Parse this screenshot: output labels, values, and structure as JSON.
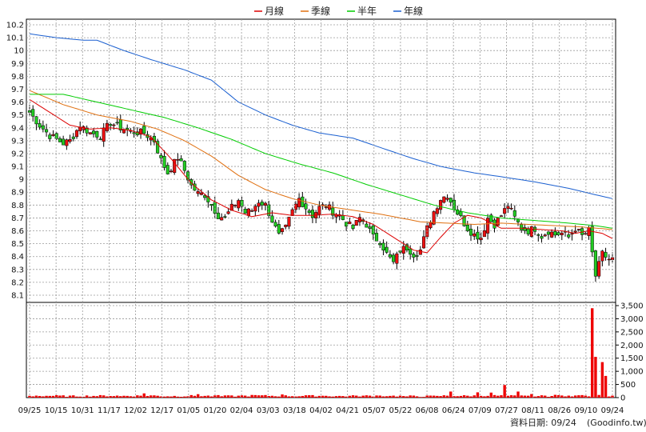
{
  "chart_data": {
    "type": "candlestick-with-moving-averages-and-volume",
    "legend": [
      {
        "name": "月線",
        "color": "#dd0000"
      },
      {
        "name": "季線",
        "color": "#e07010"
      },
      {
        "name": "半年",
        "color": "#00cc00"
      },
      {
        "name": "年線",
        "color": "#1a5fd0"
      }
    ],
    "price_axis": {
      "min": 8.1,
      "max": 10.2,
      "ticks": [
        "10.2",
        "10.1",
        "10",
        "9.9",
        "9.8",
        "9.7",
        "9.6",
        "9.5",
        "9.4",
        "9.3",
        "9.2",
        "9.1",
        "9",
        "8.9",
        "8.8",
        "8.7",
        "8.6",
        "8.5",
        "8.4",
        "8.3",
        "8.2",
        "8.1"
      ]
    },
    "volume_axis": {
      "min": 0,
      "max": 3500,
      "ticks": [
        "3,500",
        "3,000",
        "2,500",
        "2,000",
        "1,500",
        "1,000",
        "500",
        "0"
      ]
    },
    "x_dates": [
      "09/25",
      "10/15",
      "10/31",
      "11/17",
      "12/02",
      "12/17",
      "01/05",
      "01/20",
      "02/04",
      "03/03",
      "03/18",
      "04/02",
      "04/21",
      "05/07",
      "05/22",
      "06/08",
      "06/24",
      "07/09",
      "07/27",
      "08/11",
      "08/26",
      "09/10",
      "09/24"
    ],
    "moving_averages": [
      {
        "name": "月線",
        "color": "#dd0000",
        "points": [
          [
            0,
            9.62
          ],
          [
            6,
            9.52
          ],
          [
            12,
            9.42
          ],
          [
            18,
            9.39
          ],
          [
            24,
            9.4
          ],
          [
            30,
            9.38
          ],
          [
            36,
            9.33
          ],
          [
            42,
            9.16
          ],
          [
            48,
            8.97
          ],
          [
            54,
            8.84
          ],
          [
            60,
            8.76
          ],
          [
            66,
            8.71
          ],
          [
            72,
            8.74
          ],
          [
            78,
            8.72
          ],
          [
            84,
            8.72
          ],
          [
            90,
            8.73
          ],
          [
            96,
            8.71
          ],
          [
            102,
            8.65
          ],
          [
            108,
            8.55
          ],
          [
            114,
            8.45
          ],
          [
            118,
            8.43
          ],
          [
            122,
            8.55
          ],
          [
            126,
            8.66
          ],
          [
            130,
            8.72
          ],
          [
            134,
            8.7
          ],
          [
            140,
            8.62
          ],
          [
            146,
            8.62
          ],
          [
            152,
            8.61
          ],
          [
            158,
            8.6
          ],
          [
            162,
            8.58
          ],
          [
            166,
            8.6
          ],
          [
            170,
            8.58
          ],
          [
            173,
            8.54
          ]
        ]
      },
      {
        "name": "季線",
        "color": "#e07010",
        "points": [
          [
            0,
            9.69
          ],
          [
            10,
            9.58
          ],
          [
            20,
            9.5
          ],
          [
            30,
            9.45
          ],
          [
            38,
            9.39
          ],
          [
            46,
            9.3
          ],
          [
            54,
            9.18
          ],
          [
            62,
            9.03
          ],
          [
            70,
            8.92
          ],
          [
            78,
            8.85
          ],
          [
            86,
            8.8
          ],
          [
            96,
            8.76
          ],
          [
            104,
            8.73
          ],
          [
            110,
            8.7
          ],
          [
            116,
            8.67
          ],
          [
            124,
            8.66
          ],
          [
            132,
            8.65
          ],
          [
            140,
            8.66
          ],
          [
            148,
            8.65
          ],
          [
            156,
            8.64
          ],
          [
            164,
            8.63
          ],
          [
            173,
            8.61
          ]
        ]
      },
      {
        "name": "半年",
        "color": "#00cc00",
        "points": [
          [
            0,
            9.66
          ],
          [
            10,
            9.66
          ],
          [
            20,
            9.6
          ],
          [
            30,
            9.54
          ],
          [
            40,
            9.48
          ],
          [
            50,
            9.4
          ],
          [
            60,
            9.31
          ],
          [
            70,
            9.2
          ],
          [
            80,
            9.12
          ],
          [
            90,
            9.05
          ],
          [
            100,
            8.96
          ],
          [
            110,
            8.88
          ],
          [
            120,
            8.8
          ],
          [
            130,
            8.74
          ],
          [
            140,
            8.7
          ],
          [
            150,
            8.68
          ],
          [
            160,
            8.66
          ],
          [
            168,
            8.64
          ],
          [
            173,
            8.62
          ]
        ]
      },
      {
        "name": "年線",
        "color": "#1a5fd0",
        "points": [
          [
            0,
            10.13
          ],
          [
            8,
            10.1
          ],
          [
            16,
            10.08
          ],
          [
            20,
            10.08
          ],
          [
            28,
            10.0
          ],
          [
            36,
            9.93
          ],
          [
            46,
            9.85
          ],
          [
            54,
            9.77
          ],
          [
            62,
            9.6
          ],
          [
            70,
            9.5
          ],
          [
            78,
            9.42
          ],
          [
            86,
            9.36
          ],
          [
            96,
            9.32
          ],
          [
            106,
            9.23
          ],
          [
            114,
            9.16
          ],
          [
            122,
            9.1
          ],
          [
            132,
            9.05
          ],
          [
            140,
            9.02
          ],
          [
            150,
            8.98
          ],
          [
            160,
            8.93
          ],
          [
            168,
            8.88
          ],
          [
            173,
            8.85
          ]
        ]
      }
    ],
    "price_path": [
      [
        0,
        9.52
      ],
      [
        3,
        9.42
      ],
      [
        6,
        9.34
      ],
      [
        10,
        9.28
      ],
      [
        12,
        9.3
      ],
      [
        15,
        9.42
      ],
      [
        18,
        9.36
      ],
      [
        21,
        9.34
      ],
      [
        24,
        9.44
      ],
      [
        27,
        9.4
      ],
      [
        30,
        9.37
      ],
      [
        34,
        9.36
      ],
      [
        37,
        9.3
      ],
      [
        39,
        9.15
      ],
      [
        41,
        9.05
      ],
      [
        44,
        9.17
      ],
      [
        46,
        9.07
      ],
      [
        48,
        8.95
      ],
      [
        50,
        8.89
      ],
      [
        52,
        8.88
      ],
      [
        54,
        8.8
      ],
      [
        56,
        8.72
      ],
      [
        58,
        8.7
      ],
      [
        60,
        8.78
      ],
      [
        62,
        8.84
      ],
      [
        64,
        8.74
      ],
      [
        66,
        8.76
      ],
      [
        68,
        8.83
      ],
      [
        70,
        8.8
      ],
      [
        72,
        8.68
      ],
      [
        74,
        8.56
      ],
      [
        76,
        8.62
      ],
      [
        78,
        8.75
      ],
      [
        80,
        8.85
      ],
      [
        82,
        8.78
      ],
      [
        84,
        8.72
      ],
      [
        86,
        8.78
      ],
      [
        88,
        8.8
      ],
      [
        90,
        8.75
      ],
      [
        92,
        8.72
      ],
      [
        94,
        8.66
      ],
      [
        96,
        8.62
      ],
      [
        98,
        8.7
      ],
      [
        100,
        8.65
      ],
      [
        102,
        8.55
      ],
      [
        104,
        8.52
      ],
      [
        106,
        8.42
      ],
      [
        108,
        8.35
      ],
      [
        110,
        8.45
      ],
      [
        112,
        8.47
      ],
      [
        114,
        8.42
      ],
      [
        116,
        8.45
      ],
      [
        118,
        8.62
      ],
      [
        120,
        8.75
      ],
      [
        122,
        8.85
      ],
      [
        124,
        8.88
      ],
      [
        126,
        8.78
      ],
      [
        128,
        8.7
      ],
      [
        130,
        8.62
      ],
      [
        132,
        8.57
      ],
      [
        134,
        8.55
      ],
      [
        136,
        8.7
      ],
      [
        138,
        8.65
      ],
      [
        140,
        8.72
      ],
      [
        142,
        8.8
      ],
      [
        144,
        8.7
      ],
      [
        146,
        8.62
      ],
      [
        148,
        8.6
      ],
      [
        150,
        8.62
      ],
      [
        152,
        8.56
      ],
      [
        154,
        8.6
      ],
      [
        156,
        8.57
      ],
      [
        158,
        8.58
      ],
      [
        160,
        8.55
      ],
      [
        162,
        8.62
      ],
      [
        164,
        8.56
      ],
      [
        166,
        8.6
      ],
      [
        168,
        8.25
      ],
      [
        170,
        8.42
      ],
      [
        172,
        8.38
      ],
      [
        173,
        8.38
      ]
    ],
    "volume_path": [
      [
        0,
        30
      ],
      [
        6,
        40
      ],
      [
        12,
        25
      ],
      [
        18,
        35
      ],
      [
        24,
        40
      ],
      [
        30,
        35
      ],
      [
        36,
        50
      ],
      [
        40,
        25
      ],
      [
        46,
        30
      ],
      [
        50,
        45
      ],
      [
        56,
        20
      ],
      [
        62,
        30
      ],
      [
        68,
        45
      ],
      [
        74,
        35
      ],
      [
        80,
        30
      ],
      [
        86,
        40
      ],
      [
        92,
        25
      ],
      [
        98,
        35
      ],
      [
        104,
        40
      ],
      [
        110,
        30
      ],
      [
        116,
        20
      ],
      [
        120,
        25
      ],
      [
        124,
        45
      ],
      [
        130,
        35
      ],
      [
        136,
        50
      ],
      [
        142,
        35
      ],
      [
        148,
        25
      ],
      [
        154,
        30
      ],
      [
        158,
        40
      ],
      [
        162,
        45
      ],
      [
        166,
        35
      ],
      [
        170,
        45
      ],
      [
        173,
        20
      ]
    ],
    "volume_spikes": [
      [
        2,
        75
      ],
      [
        27,
        55
      ],
      [
        34,
        160
      ],
      [
        50,
        130
      ],
      [
        56,
        95
      ],
      [
        59,
        85
      ],
      [
        63,
        85
      ],
      [
        66,
        100
      ],
      [
        75,
        120
      ],
      [
        83,
        90
      ],
      [
        87,
        70
      ],
      [
        97,
        75
      ],
      [
        103,
        80
      ],
      [
        107,
        65
      ],
      [
        112,
        45
      ],
      [
        121,
        65
      ],
      [
        125,
        230
      ],
      [
        133,
        200
      ],
      [
        137,
        190
      ],
      [
        141,
        480
      ],
      [
        145,
        230
      ],
      [
        149,
        135
      ],
      [
        153,
        75
      ],
      [
        156,
        105
      ],
      [
        160,
        75
      ],
      [
        164,
        95
      ],
      [
        167,
        3400
      ],
      [
        168,
        1550
      ],
      [
        170,
        1350
      ],
      [
        171,
        825
      ]
    ],
    "footer_label": "資料日期: 09/24",
    "footer_source": "(Goodinfo.tw)"
  }
}
